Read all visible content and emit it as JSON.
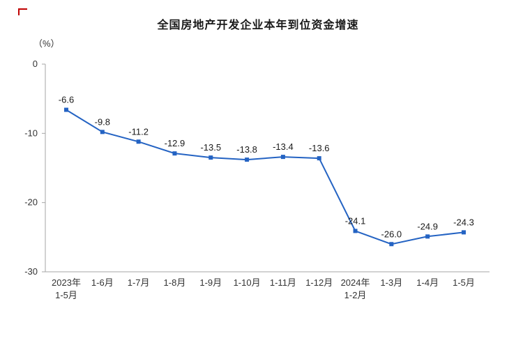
{
  "chart_data": {
    "type": "line",
    "title": "全国房地产开发企业本年到位资金增速",
    "unit_label": "（%）",
    "categories": [
      [
        "2023年",
        "1-5月"
      ],
      [
        "1-6月"
      ],
      [
        "1-7月"
      ],
      [
        "1-8月"
      ],
      [
        "1-9月"
      ],
      [
        "1-10月"
      ],
      [
        "1-11月"
      ],
      [
        "1-12月"
      ],
      [
        "2024年",
        "1-2月"
      ],
      [
        "1-3月"
      ],
      [
        "1-4月"
      ],
      [
        "1-5月"
      ]
    ],
    "values": [
      -6.6,
      -9.8,
      -11.2,
      -12.9,
      -13.5,
      -13.8,
      -13.4,
      -13.6,
      -24.1,
      -26.0,
      -24.9,
      -24.3
    ],
    "labels": [
      "-6.6",
      "-9.8",
      "-11.2",
      "-12.9",
      "-13.5",
      "-13.8",
      "-13.4",
      "-13.6",
      "-24.1",
      "-26.0",
      "-24.9",
      "-24.3"
    ],
    "y_ticks": [
      0,
      -10,
      -20,
      -30
    ],
    "ylim": [
      -30,
      0
    ],
    "line_color": "#2463c3",
    "marker": "square",
    "axis_color": "#a6a6a6",
    "text_color": "#333333",
    "label_color": "#1a1a1a",
    "grid": false,
    "legend": "none"
  },
  "decor": {
    "corner_color": "#c00000"
  }
}
